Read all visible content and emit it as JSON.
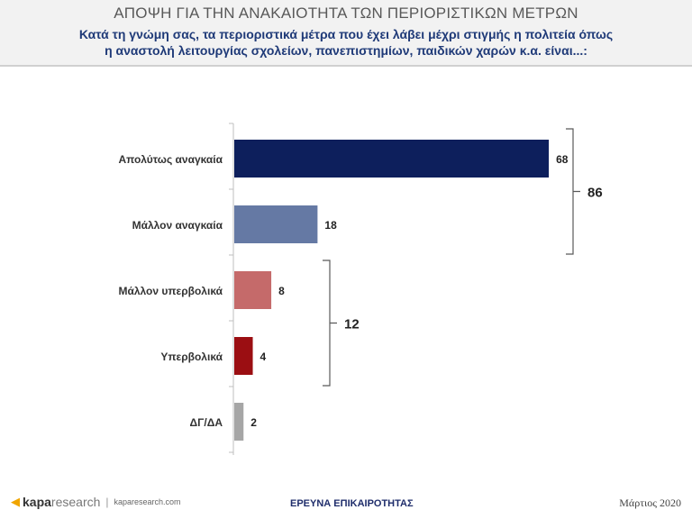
{
  "header": {
    "title": "ΑΠΟΨΗ ΓΙΑ ΤΗΝ ΑΝΑΚΑΙΟΤΗΤΑ ΤΩΝ ΠΕΡΙΟΡΙΣΤΙΚΩΝ ΜΕΤΡΩΝ",
    "subtitle_line1": "Κατά τη γνώμη σας, τα περιοριστικά μέτρα που έχει λάβει μέχρι στιγμής η πολιτεία όπως",
    "subtitle_line2": "η αναστολή λειτουργίας σχολείων, πανεπιστημίων, παιδικών χαρών κ.α. είναι...:"
  },
  "chart_data": {
    "type": "bar",
    "orientation": "horizontal",
    "categories": [
      "Απολύτως αναγκαία",
      "Μάλλον αναγκαία",
      "Μάλλον υπερβολικά",
      "Υπερβολικά",
      "ΔΓ/ΔΑ"
    ],
    "values": [
      68,
      18,
      8,
      4,
      2
    ],
    "colors": [
      "#0d1f5c",
      "#6579a4",
      "#c56a6a",
      "#9b0e12",
      "#a6a6a6"
    ],
    "xlim": [
      0,
      75
    ],
    "grid": false,
    "groups": [
      {
        "label": "86",
        "members": [
          "Απολύτως αναγκαία",
          "Μάλλον αναγκαία"
        ]
      },
      {
        "label": "12",
        "members": [
          "Μάλλον υπερβολικά",
          "Υπερβολικά"
        ]
      }
    ]
  },
  "footer": {
    "logo_kapa": "kapa",
    "logo_research": "research",
    "url": "kaparesearch.com",
    "center": "ΕΡΕΥΝΑ ΕΠΙΚΑΙΡΟΤΗΤΑΣ",
    "date": "Μάρτιος 2020"
  }
}
